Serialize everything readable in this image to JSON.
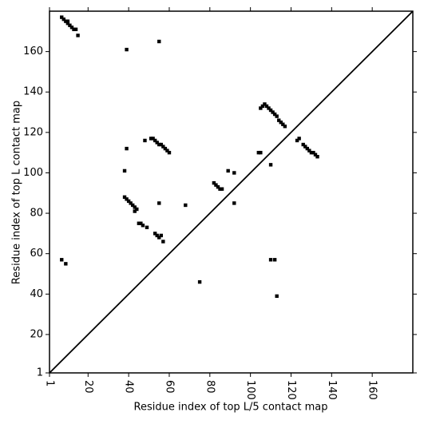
{
  "chart_data": {
    "type": "scatter",
    "x_label": "Residue index of top L/5 contact map",
    "y_label": "Residue index of top L contact map",
    "xlim": [
      1,
      180
    ],
    "ylim": [
      1,
      180
    ],
    "xticks": [
      1,
      20,
      40,
      60,
      80,
      100,
      120,
      140,
      160
    ],
    "yticks": [
      1,
      20,
      40,
      60,
      80,
      100,
      120,
      140,
      160
    ],
    "color": "#000000",
    "x": [
      7,
      8,
      9,
      10,
      10,
      11,
      12,
      13,
      14,
      15,
      55,
      39,
      39,
      38,
      51,
      52,
      53,
      54,
      55,
      56,
      57,
      58,
      59,
      60,
      48,
      55,
      68,
      38,
      39,
      40,
      41,
      42,
      43,
      44,
      43,
      45,
      46,
      47,
      49,
      53,
      54,
      56,
      55,
      57,
      7,
      9,
      75,
      82,
      83,
      84,
      85,
      86,
      89,
      92,
      92,
      104,
      105,
      106,
      107,
      108,
      109,
      110,
      111,
      112,
      113,
      114,
      115,
      116,
      117,
      105,
      110,
      110,
      112,
      113,
      123,
      124,
      126,
      127,
      128,
      129,
      130,
      131,
      132,
      133
    ],
    "y": [
      177,
      176,
      175,
      174,
      175,
      173,
      172,
      171,
      171,
      168,
      165,
      161,
      112,
      101,
      117,
      117,
      116,
      115,
      114,
      114,
      113,
      112,
      111,
      110,
      116,
      85,
      84,
      88,
      87,
      86,
      85,
      84,
      83,
      82,
      81,
      75,
      75,
      74,
      73,
      70,
      69,
      69,
      68,
      66,
      57,
      55,
      46,
      95,
      94,
      93,
      92,
      92,
      101,
      100,
      85,
      110,
      110,
      133,
      134,
      133,
      132,
      131,
      130,
      129,
      128,
      126,
      125,
      124,
      123,
      132,
      104,
      57,
      57,
      39,
      116,
      117,
      114,
      113,
      112,
      111,
      110,
      110,
      109,
      108
    ]
  }
}
